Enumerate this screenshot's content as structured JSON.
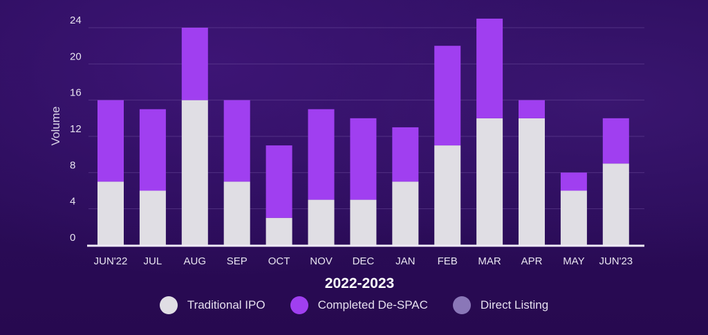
{
  "chart_data": {
    "type": "bar",
    "stacked": true,
    "categories": [
      "JUN'22",
      "JUL",
      "AUG",
      "SEP",
      "OCT",
      "NOV",
      "DEC",
      "JAN",
      "FEB",
      "MAR",
      "APR",
      "MAY",
      "JUN'23"
    ],
    "series": [
      {
        "name": "Traditional IPO",
        "color": "#e0dee4",
        "values": [
          7,
          6,
          16,
          7,
          3,
          5,
          5,
          7,
          11,
          14,
          14,
          6,
          9
        ]
      },
      {
        "name": "Completed De-SPAC",
        "color": "#a03ff0",
        "values": [
          9,
          9,
          8,
          9,
          8,
          10,
          9,
          6,
          11,
          11,
          2,
          2,
          5
        ]
      },
      {
        "name": "Direct Listing",
        "color": "#8a77b8",
        "values": [
          0,
          0,
          0,
          0,
          0,
          0,
          0,
          0,
          0,
          0,
          0,
          0,
          0
        ]
      }
    ],
    "xlabel": "2022-2023",
    "ylabel": "Volume",
    "ylim": [
      0,
      24
    ],
    "yticks": [
      0,
      4,
      8,
      12,
      16,
      20,
      24
    ],
    "grid": true,
    "legend": "bottom-center"
  }
}
